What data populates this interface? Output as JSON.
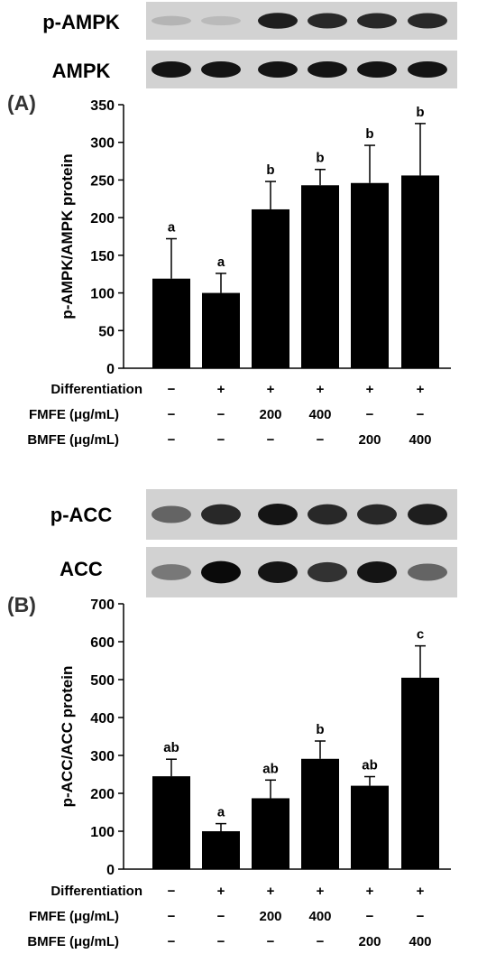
{
  "colors": {
    "bar": "#000000",
    "blot_background": "#d2d2d2",
    "band": "#111111"
  },
  "panel_a": {
    "label": "(A)",
    "blot_labels": [
      "p-AMPK",
      "AMPK"
    ],
    "band_darkness": [
      [
        0.15,
        0.12,
        0.9,
        0.85,
        0.85,
        0.85
      ],
      [
        0.95,
        0.95,
        0.95,
        0.95,
        0.95,
        0.95
      ]
    ]
  },
  "panel_b": {
    "label": "(B)",
    "blot_labels": [
      "p-ACC",
      "ACC"
    ],
    "band_darkness": [
      [
        0.55,
        0.85,
        0.95,
        0.85,
        0.85,
        0.9
      ],
      [
        0.45,
        1.0,
        0.95,
        0.8,
        0.95,
        0.55
      ]
    ]
  },
  "treatment_rows": [
    {
      "label": "Differentiation",
      "values": [
        "−",
        "+",
        "+",
        "+",
        "+",
        "+"
      ]
    },
    {
      "label": "FMFE (μg/mL)",
      "values": [
        "−",
        "−",
        "200",
        "400",
        "−",
        "−"
      ]
    },
    {
      "label": "BMFE (μg/mL)",
      "values": [
        "−",
        "−",
        "−",
        "−",
        "200",
        "400"
      ]
    }
  ],
  "chart_data": [
    {
      "type": "bar",
      "title": "",
      "xlabel": "",
      "ylabel": "p-AMPK/AMPK protein",
      "ylim": [
        0,
        350
      ],
      "yticks": [
        0,
        50,
        100,
        150,
        200,
        250,
        300,
        350
      ],
      "values": [
        119,
        100,
        211,
        243,
        246,
        256
      ],
      "errors": [
        53,
        26,
        37,
        21,
        50,
        69
      ],
      "significance": [
        "a",
        "a",
        "b",
        "b",
        "b",
        "b"
      ],
      "grid": false
    },
    {
      "type": "bar",
      "title": "",
      "xlabel": "",
      "ylabel": "p-ACC/ACC protein",
      "ylim": [
        0,
        700
      ],
      "yticks": [
        0,
        100,
        200,
        300,
        400,
        500,
        600,
        700
      ],
      "values": [
        245,
        100,
        187,
        291,
        220,
        505
      ],
      "errors": [
        45,
        20,
        48,
        47,
        24,
        84
      ],
      "significance": [
        "ab",
        "a",
        "ab",
        "b",
        "ab",
        "c"
      ],
      "grid": false
    }
  ]
}
